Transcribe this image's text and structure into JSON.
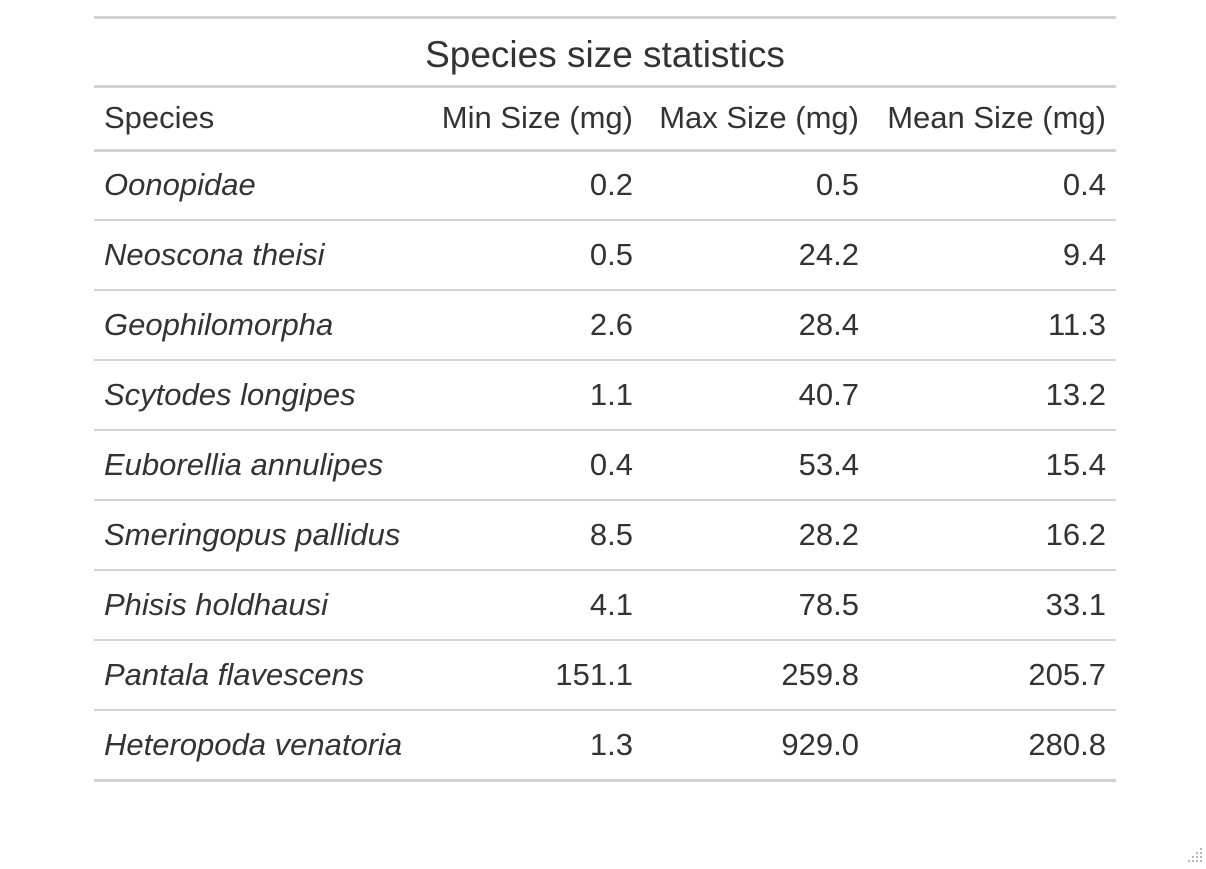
{
  "table": {
    "title": "Species size statistics",
    "columns": [
      "Species",
      "Min Size (mg)",
      "Max Size (mg)",
      "Mean Size (mg)"
    ],
    "rows": [
      {
        "species": "Oonopidae",
        "min": "0.2",
        "max": "0.5",
        "mean": "0.4"
      },
      {
        "species": "Neoscona theisi",
        "min": "0.5",
        "max": "24.2",
        "mean": "9.4"
      },
      {
        "species": "Geophilomorpha",
        "min": "2.6",
        "max": "28.4",
        "mean": "11.3"
      },
      {
        "species": "Scytodes longipes",
        "min": "1.1",
        "max": "40.7",
        "mean": "13.2"
      },
      {
        "species": "Euborellia annulipes",
        "min": "0.4",
        "max": "53.4",
        "mean": "15.4"
      },
      {
        "species": "Smeringopus pallidus",
        "min": "8.5",
        "max": "28.2",
        "mean": "16.2"
      },
      {
        "species": "Phisis holdhausi",
        "min": "4.1",
        "max": "78.5",
        "mean": "33.1"
      },
      {
        "species": "Pantala flavescens",
        "min": "151.1",
        "max": "259.8",
        "mean": "205.7"
      },
      {
        "species": "Heteropoda venatoria",
        "min": "1.3",
        "max": "929.0",
        "mean": "280.8"
      }
    ]
  },
  "colors": {
    "text": "#333333",
    "rule": "#d3d3d3",
    "background": "#ffffff"
  },
  "icons": {
    "corner": "resize-grip-icon"
  }
}
